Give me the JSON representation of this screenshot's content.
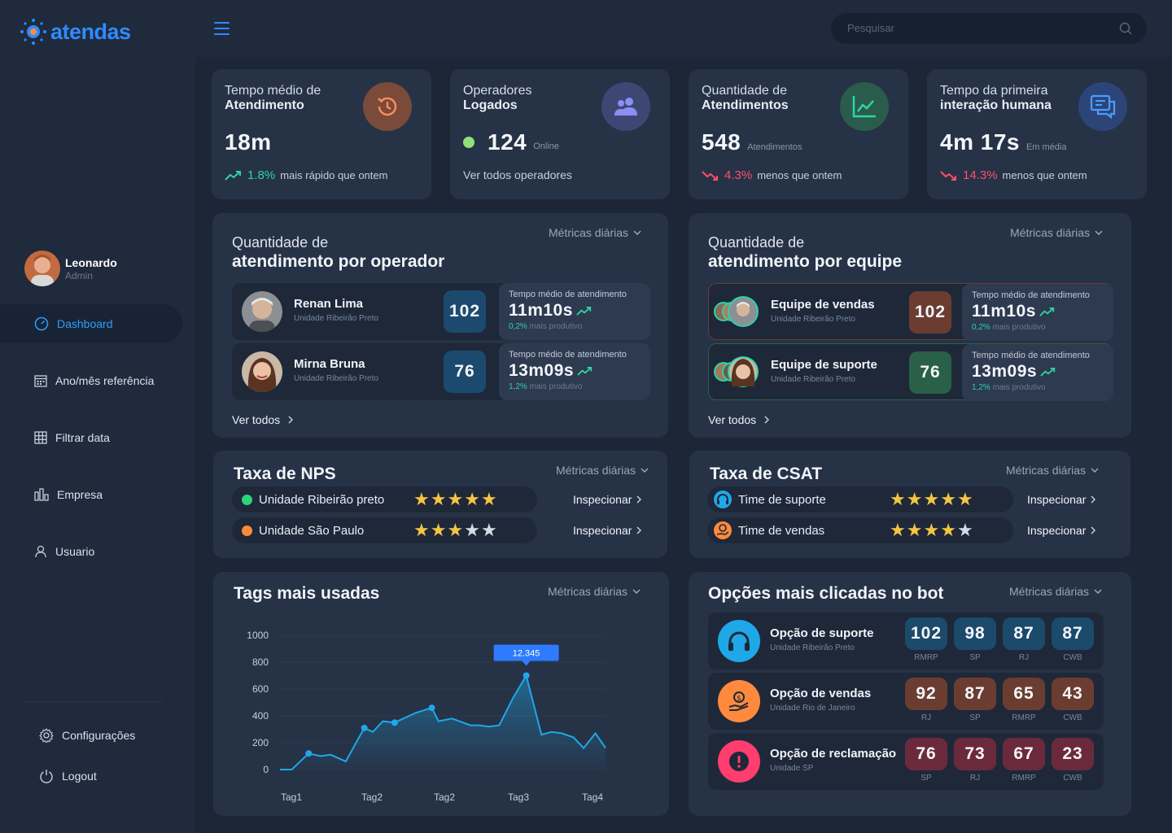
{
  "brand": {
    "name": "atendas"
  },
  "search": {
    "placeholder": "Pesquisar"
  },
  "user": {
    "name": "Leonardo",
    "role": "Admin"
  },
  "nav": [
    {
      "label": "Dashboard",
      "icon": "dashboard-icon",
      "active": true
    },
    {
      "label": "Ano/mês referência",
      "icon": "calendar-icon"
    },
    {
      "label": "Filtrar data",
      "icon": "grid-icon"
    },
    {
      "label": "Empresa",
      "icon": "building-icon"
    },
    {
      "label": "Usuario",
      "icon": "user-icon"
    }
  ],
  "footer_nav": [
    {
      "label": "Configurações",
      "icon": "gear-icon"
    },
    {
      "label": "Logout",
      "icon": "power-icon"
    }
  ],
  "stats": [
    {
      "title1": "Tempo médio de",
      "title2": "Atendimento",
      "value": "18m",
      "unit": "",
      "trend": "up",
      "pct": "1.8%",
      "note": "mais rápido que ontem",
      "icon": "history-icon",
      "color": "#7a4a3a"
    },
    {
      "title1": "Operadores",
      "title2": "Logados",
      "value": "124",
      "unit": "Online",
      "note": "Ver todos operadores",
      "icon": "users-icon",
      "color": "#3e4774"
    },
    {
      "title1": "Quantidade de",
      "title2": "Atendimentos",
      "value": "548",
      "unit": "Atendimentos",
      "trend": "down",
      "pct": "4.3%",
      "note": "menos que ontem",
      "icon": "chart-line-icon",
      "color": "#2a5c4c"
    },
    {
      "title1": "Tempo da primeira",
      "title2": "interação humana",
      "value": "4m 17s",
      "unit": "Em média",
      "trend": "down",
      "pct": "14.3%",
      "note": "menos que ontem",
      "icon": "chat-icon",
      "color": "#2c4578"
    }
  ],
  "metric_label": "Métricas diárias",
  "ver_todos": "Ver todos",
  "inspect_label": "Inspecionar",
  "panel_label": "Tempo médio de atendimento",
  "panel_sub": "mais produtivo",
  "by_operator": {
    "title1": "Quantidade de",
    "title2": "atendimento por operador",
    "rows": [
      {
        "name": "Renan Lima",
        "unit": "Unidade Ribeirão Preto",
        "count": "102",
        "time": "11m10s",
        "pct": "0,2%",
        "color": "#1c4a6e"
      },
      {
        "name": "Mirna Bruna",
        "unit": "Unidade Ribeirão Preto",
        "count": "76",
        "time": "13m09s",
        "pct": "1,2%",
        "color": "#1c4a6e"
      }
    ]
  },
  "by_team": {
    "title1": "Quantidade de",
    "title2": "atendimento por equipe",
    "rows": [
      {
        "name": "Equipe de vendas",
        "unit": "Unidade Ribeirão Preto",
        "count": "102",
        "time": "11m10s",
        "pct": "0,2%",
        "color": "#6b3d30",
        "border": "#6b3d30"
      },
      {
        "name": "Equipe de suporte",
        "unit": "Unidade Ribeirão Preto",
        "count": "76",
        "time": "13m09s",
        "pct": "1,2%",
        "color": "#2a6048",
        "border": "#2a6048"
      }
    ]
  },
  "nps": {
    "title": "Taxa de NPS",
    "rows": [
      {
        "label": "Unidade Ribeirão preto",
        "rating": 5,
        "color": "#2ed37a"
      },
      {
        "label": "Unidade São Paulo",
        "rating": 3,
        "color": "#ff8a3d"
      }
    ]
  },
  "csat": {
    "title": "Taxa de CSAT",
    "rows": [
      {
        "label": "Time de suporte",
        "rating": 5,
        "icon": "headset-icon",
        "color": "#1fa8e8"
      },
      {
        "label": "Time de vendas",
        "rating": 4,
        "icon": "money-hand-icon",
        "color": "#ff8a3d"
      }
    ]
  },
  "bot": {
    "title": "Opções mais clicadas no bot",
    "rows": [
      {
        "name": "Opção de suporte",
        "unit": "Unidade Ribeirão Preto",
        "icon": "headset-icon",
        "icon_color": "#1fa8e8",
        "box_color": "#1b4a6b",
        "values": [
          {
            "v": "102",
            "c": "RMRP"
          },
          {
            "v": "98",
            "c": "SP"
          },
          {
            "v": "87",
            "c": "RJ"
          },
          {
            "v": "87",
            "c": "CWB"
          }
        ]
      },
      {
        "name": "Opção de vendas",
        "unit": "Unidade Rio de Janeiro",
        "icon": "money-hand-icon",
        "icon_color": "#ff8a3d",
        "box_color": "#6b3d30",
        "values": [
          {
            "v": "92",
            "c": "RJ"
          },
          {
            "v": "87",
            "c": "SP"
          },
          {
            "v": "65",
            "c": "RMRP"
          },
          {
            "v": "43",
            "c": "CWB"
          }
        ]
      },
      {
        "name": "Opção de reclamação",
        "unit": "Unidade SP",
        "icon": "alert-icon",
        "icon_color": "#ff3d6e",
        "box_color": "#6b2a3c",
        "values": [
          {
            "v": "76",
            "c": "SP"
          },
          {
            "v": "73",
            "c": "RJ"
          },
          {
            "v": "67",
            "c": "RMRP"
          },
          {
            "v": "23",
            "c": "CWB"
          }
        ]
      }
    ]
  },
  "tags": {
    "title": "Tags mais usadas",
    "chart_data": {
      "type": "area",
      "ylim": [
        0,
        1000
      ],
      "yticks": [
        0,
        200,
        400,
        600,
        800,
        1000
      ],
      "xticks": [
        "Tag1",
        "Tag2",
        "Tag2",
        "Tag3",
        "Tag4"
      ],
      "tooltip": "12.345",
      "points": [
        [
          0,
          0
        ],
        [
          0.35,
          0
        ],
        [
          0.85,
          120
        ],
        [
          1.2,
          100
        ],
        [
          1.5,
          110
        ],
        [
          1.95,
          60
        ],
        [
          2.5,
          310
        ],
        [
          2.75,
          280
        ],
        [
          3.05,
          360
        ],
        [
          3.4,
          350
        ],
        [
          4.0,
          420
        ],
        [
          4.5,
          460
        ],
        [
          4.7,
          360
        ],
        [
          5.1,
          380
        ],
        [
          5.65,
          330
        ],
        [
          5.9,
          330
        ],
        [
          6.2,
          320
        ],
        [
          6.5,
          330
        ],
        [
          6.9,
          530
        ],
        [
          7.3,
          700
        ],
        [
          7.75,
          260
        ],
        [
          8.05,
          280
        ],
        [
          8.35,
          270
        ],
        [
          8.7,
          240
        ],
        [
          9.0,
          160
        ],
        [
          9.35,
          270
        ],
        [
          9.65,
          160
        ]
      ],
      "markers": [
        0.85,
        2.5,
        3.4,
        4.5,
        7.3
      ]
    }
  }
}
